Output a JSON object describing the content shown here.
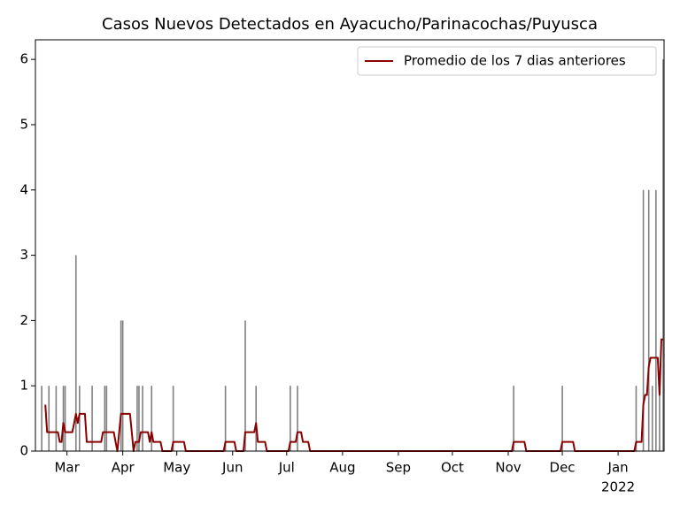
{
  "chart_data": {
    "type": "bar_line",
    "title": "Casos Nuevos Detectados en Ayacucho/Parinacochas/Puyusca",
    "categories": [
      null,
      null,
      null,
      null,
      null,
      null,
      null,
      null,
      null,
      null,
      null,
      null,
      null,
      null,
      null,
      null,
      null,
      "Mar",
      null,
      null,
      null,
      null,
      null,
      null,
      null,
      null,
      null,
      null,
      null,
      null,
      null,
      null,
      null,
      null,
      null,
      null,
      null,
      null,
      null,
      null,
      null,
      null,
      null,
      null,
      null,
      null,
      null,
      null,
      "Apr",
      null,
      null,
      null,
      null,
      null,
      null,
      null,
      null,
      null,
      null,
      null,
      null,
      null,
      null,
      null,
      null,
      null,
      null,
      null,
      null,
      null,
      null,
      null,
      null,
      null,
      null,
      null,
      null,
      null,
      "May",
      null,
      null,
      null,
      null,
      null,
      null,
      null,
      null,
      null,
      null,
      null,
      null,
      null,
      null,
      null,
      null,
      null,
      null,
      null,
      null,
      null,
      null,
      null,
      null,
      null,
      null,
      null,
      null,
      null,
      null,
      "Jun",
      null,
      null,
      null,
      null,
      null,
      null,
      null,
      null,
      null,
      null,
      null,
      null,
      null,
      null,
      null,
      null,
      null,
      null,
      null,
      null,
      null,
      null,
      null,
      null,
      null,
      null,
      null,
      null,
      null,
      "Jul",
      null,
      null,
      null,
      null,
      null,
      null,
      null,
      null,
      null,
      null,
      null,
      null,
      null,
      null,
      null,
      null,
      null,
      null,
      null,
      null,
      null,
      null,
      null,
      null,
      null,
      null,
      null,
      null,
      null,
      null,
      "Aug",
      null,
      null,
      null,
      null,
      null,
      null,
      null,
      null,
      null,
      null,
      null,
      null,
      null,
      null,
      null,
      null,
      null,
      null,
      null,
      null,
      null,
      null,
      null,
      null,
      null,
      null,
      null,
      null,
      null,
      null,
      "Sep",
      null,
      null,
      null,
      null,
      null,
      null,
      null,
      null,
      null,
      null,
      null,
      null,
      null,
      null,
      null,
      null,
      null,
      null,
      null,
      null,
      null,
      null,
      null,
      null,
      null,
      null,
      null,
      null,
      null,
      "Oct",
      null,
      null,
      null,
      null,
      null,
      null,
      null,
      null,
      null,
      null,
      null,
      null,
      null,
      null,
      null,
      null,
      null,
      null,
      null,
      null,
      null,
      null,
      null,
      null,
      null,
      null,
      null,
      null,
      null,
      null,
      "Nov",
      null,
      null,
      null,
      null,
      null,
      null,
      null,
      null,
      null,
      null,
      null,
      null,
      null,
      null,
      null,
      null,
      null,
      null,
      null,
      null,
      null,
      null,
      null,
      null,
      null,
      null,
      null,
      null,
      null,
      "Dec",
      null,
      null,
      null,
      null,
      null,
      null,
      null,
      null,
      null,
      null,
      null,
      null,
      null,
      null,
      null,
      null,
      null,
      null,
      null,
      null,
      null,
      null,
      null,
      null,
      null,
      null,
      null,
      null,
      null,
      null,
      "Jan",
      null,
      null,
      null,
      null,
      null,
      null,
      null,
      null,
      null,
      null,
      null,
      null,
      null,
      null,
      null,
      null,
      null,
      null,
      null,
      null,
      null,
      null,
      null,
      null,
      null
    ],
    "x_year_label": "2022",
    "series": [
      {
        "kind": "bar",
        "color": "#808080",
        "values": [
          0,
          0,
          0,
          1,
          0,
          0,
          0,
          1,
          0,
          0,
          0,
          1,
          0,
          0,
          0,
          1,
          1,
          0,
          0,
          0,
          0,
          0,
          3,
          0,
          1,
          0,
          0,
          0,
          0,
          0,
          0,
          1,
          0,
          0,
          0,
          0,
          0,
          0,
          1,
          1,
          0,
          0,
          0,
          0,
          0,
          0,
          0,
          2,
          2,
          0,
          0,
          0,
          0,
          0,
          0,
          0,
          1,
          1,
          0,
          1,
          0,
          0,
          0,
          0,
          1,
          0,
          0,
          0,
          0,
          0,
          0,
          0,
          0,
          0,
          0,
          0,
          1,
          0,
          0,
          0,
          0,
          0,
          0,
          0,
          0,
          0,
          0,
          0,
          0,
          0,
          0,
          0,
          0,
          0,
          0,
          0,
          0,
          0,
          0,
          0,
          0,
          0,
          0,
          0,
          0,
          1,
          0,
          0,
          0,
          0,
          0,
          0,
          0,
          0,
          0,
          0,
          2,
          0,
          0,
          0,
          0,
          0,
          1,
          0,
          0,
          0,
          0,
          0,
          0,
          0,
          0,
          0,
          0,
          0,
          0,
          0,
          0,
          0,
          0,
          0,
          0,
          1,
          0,
          0,
          0,
          1,
          0,
          0,
          0,
          0,
          0,
          0,
          0,
          0,
          0,
          0,
          0,
          0,
          0,
          0,
          0,
          0,
          0,
          0,
          0,
          0,
          0,
          0,
          0,
          0,
          0,
          0,
          0,
          0,
          0,
          0,
          0,
          0,
          0,
          0,
          0,
          0,
          0,
          0,
          0,
          0,
          0,
          0,
          0,
          0,
          0,
          0,
          0,
          0,
          0,
          0,
          0,
          0,
          0,
          0,
          0,
          0,
          0,
          0,
          0,
          0,
          0,
          0,
          0,
          0,
          0,
          0,
          0,
          0,
          0,
          0,
          0,
          0,
          0,
          0,
          0,
          0,
          0,
          0,
          0,
          0,
          0,
          0,
          0,
          0,
          0,
          0,
          0,
          0,
          0,
          0,
          0,
          0,
          0,
          0,
          0,
          0,
          0,
          0,
          0,
          0,
          0,
          0,
          0,
          0,
          0,
          0,
          0,
          0,
          0,
          0,
          0,
          0,
          0,
          0,
          0,
          0,
          0,
          0,
          0,
          1,
          0,
          0,
          0,
          0,
          0,
          0,
          0,
          0,
          0,
          0,
          0,
          0,
          0,
          0,
          0,
          0,
          0,
          0,
          0,
          0,
          0,
          0,
          0,
          0,
          0,
          0,
          1,
          0,
          0,
          0,
          0,
          0,
          0,
          0,
          0,
          0,
          0,
          0,
          0,
          0,
          0,
          0,
          0,
          0,
          0,
          0,
          0,
          0,
          0,
          0,
          0,
          0,
          0,
          0,
          0,
          0,
          0,
          0,
          0,
          0,
          0,
          0,
          0,
          0,
          0,
          0,
          0,
          1,
          0,
          0,
          0,
          4,
          0,
          0,
          4,
          0,
          1,
          0,
          4,
          0,
          1,
          0,
          6
        ]
      },
      {
        "kind": "line",
        "name": "Promedio de los 7 dias anteriores",
        "color": "#8b0000",
        "values": [
          null,
          null,
          null,
          null,
          null,
          0.71,
          0.29,
          0.29,
          0.29,
          0.29,
          0.29,
          0.29,
          0.29,
          0.14,
          0.14,
          0.43,
          0.29,
          0.29,
          0.29,
          0.29,
          0.29,
          0.43,
          0.57,
          0.43,
          0.57,
          0.57,
          0.57,
          0.57,
          0.14,
          0.14,
          0.14,
          0.14,
          0.14,
          0.14,
          0.14,
          0.14,
          0.14,
          0.29,
          0.29,
          0.29,
          0.29,
          0.29,
          0.29,
          0.29,
          0.14,
          0,
          0.29,
          0.57,
          0.57,
          0.57,
          0.57,
          0.57,
          0.57,
          0.29,
          0,
          0.14,
          0.14,
          0.14,
          0.29,
          0.29,
          0.29,
          0.29,
          0.29,
          0.14,
          0.29,
          0.14,
          0.14,
          0.14,
          0.14,
          0.14,
          0,
          0,
          0,
          0,
          0,
          0,
          0.14,
          0.14,
          0.14,
          0.14,
          0.14,
          0.14,
          0.14,
          0,
          0,
          0,
          0,
          0,
          0,
          0,
          0,
          0,
          0,
          0,
          0,
          0,
          0,
          0,
          0,
          0,
          0,
          0,
          0,
          0,
          0,
          0.14,
          0.14,
          0.14,
          0.14,
          0.14,
          0.14,
          0,
          0,
          0,
          0,
          0,
          0.29,
          0.29,
          0.29,
          0.29,
          0.29,
          0.29,
          0.43,
          0.14,
          0.14,
          0.14,
          0.14,
          0.14,
          0,
          0,
          0,
          0,
          0,
          0,
          0,
          0,
          0,
          0,
          0,
          0,
          0,
          0.14,
          0.14,
          0.14,
          0.14,
          0.29,
          0.29,
          0.29,
          0.14,
          0.14,
          0.14,
          0.14,
          0,
          0,
          0,
          0,
          0,
          0,
          0,
          0,
          0,
          0,
          0,
          0,
          0,
          0,
          0,
          0,
          0,
          0,
          0,
          0,
          0,
          0,
          0,
          0,
          0,
          0,
          0,
          0,
          0,
          0,
          0,
          0,
          0,
          0,
          0,
          0,
          0,
          0,
          0,
          0,
          0,
          0,
          0,
          0,
          0,
          0,
          0,
          0,
          0,
          0,
          0,
          0,
          0,
          0,
          0,
          0,
          0,
          0,
          0,
          0,
          0,
          0,
          0,
          0,
          0,
          0,
          0,
          0,
          0,
          0,
          0,
          0,
          0,
          0,
          0,
          0,
          0,
          0,
          0,
          0,
          0,
          0,
          0,
          0,
          0,
          0,
          0,
          0,
          0,
          0,
          0,
          0,
          0,
          0,
          0,
          0,
          0,
          0,
          0,
          0,
          0,
          0,
          0,
          0,
          0,
          0,
          0,
          0,
          0,
          0,
          0,
          0,
          0,
          0.14,
          0.14,
          0.14,
          0.14,
          0.14,
          0.14,
          0.14,
          0,
          0,
          0,
          0,
          0,
          0,
          0,
          0,
          0,
          0,
          0,
          0,
          0,
          0,
          0,
          0,
          0,
          0,
          0,
          0,
          0.14,
          0.14,
          0.14,
          0.14,
          0.14,
          0.14,
          0.14,
          0,
          0,
          0,
          0,
          0,
          0,
          0,
          0,
          0,
          0,
          0,
          0,
          0,
          0,
          0,
          0,
          0,
          0,
          0,
          0,
          0,
          0,
          0,
          0,
          0,
          0,
          0,
          0,
          0,
          0,
          0,
          0,
          0,
          0,
          0.14,
          0.14,
          0.14,
          0.14,
          0.71,
          0.86,
          0.86,
          1.29,
          1.43,
          1.43,
          1.43,
          1.43,
          1.43,
          0.86,
          1.71,
          1.71
        ]
      }
    ],
    "ylim": [
      0,
      6.3
    ],
    "yticks": [
      0,
      1,
      2,
      3,
      4,
      5,
      6
    ],
    "legend": "upper right"
  }
}
